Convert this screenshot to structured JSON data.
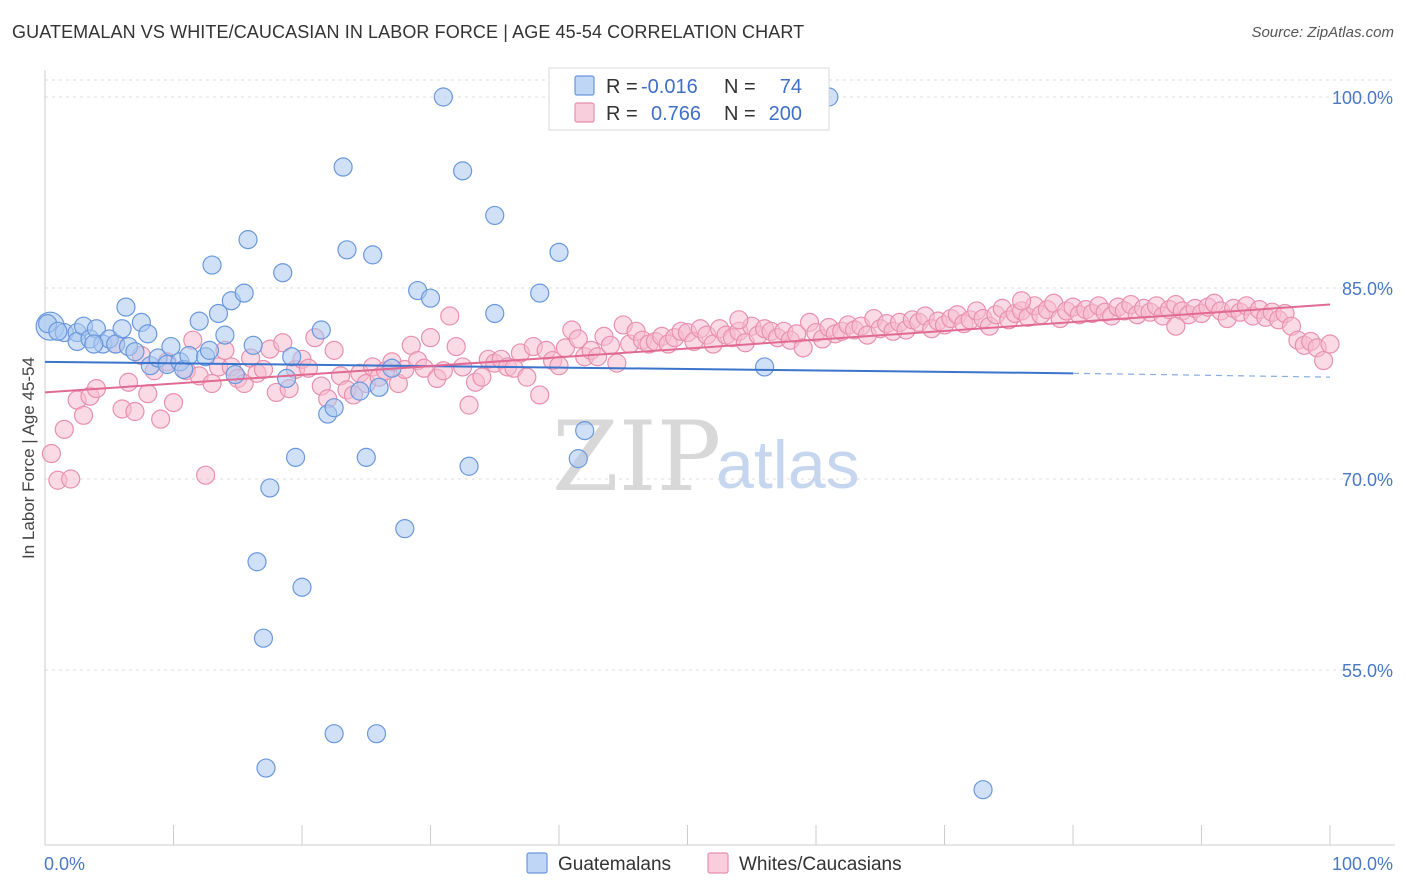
{
  "title": "GUATEMALAN VS WHITE/CAUCASIAN IN LABOR FORCE | AGE 45-54 CORRELATION CHART",
  "source": "Source: ZipAtlas.com",
  "watermark": {
    "zip": "ZIP",
    "atlas": "atlas"
  },
  "chart_data": {
    "type": "scatter",
    "xlabel": "",
    "ylabel": "In Labor Force | Age 45-54",
    "xlim": [
      0,
      100
    ],
    "ylim": [
      40,
      103
    ],
    "x_tick_labels": [
      "0.0%",
      "100.0%"
    ],
    "y_ticks": [
      {
        "value": 55,
        "label": "55.0%"
      },
      {
        "value": 70,
        "label": "70.0%"
      },
      {
        "value": 85,
        "label": "85.0%"
      },
      {
        "value": 100,
        "label": "100.0%"
      }
    ],
    "grid": true,
    "legend_position": "top-center",
    "colors": {
      "guatemalan_fill": "#aac8f0",
      "guatemalan_stroke": "#6a98dc",
      "guatemalan_line": "#3a74cc",
      "white_fill": "#f6bcd0",
      "white_stroke": "#e890ae",
      "white_line": "#e06a94",
      "tick_text": "#4a78c4"
    },
    "stats": [
      {
        "r_label": "R =",
        "r": "-0.016",
        "n_label": "N =",
        "n": "74"
      },
      {
        "r_label": "R =",
        "r": "0.766",
        "n_label": "N =",
        "n": "200"
      }
    ],
    "series": [
      {
        "name": "Guatemalans",
        "trend": {
          "x0": 0,
          "y0": 79.2,
          "x1": 80,
          "y1": 78.3,
          "dash_to": 100,
          "dash_y": 78.0
        },
        "points": [
          [
            0.4,
            82.0
          ],
          [
            1.5,
            81.5
          ],
          [
            2.5,
            81.5
          ],
          [
            2.5,
            80.8
          ],
          [
            3.0,
            82.0
          ],
          [
            3.5,
            81.0
          ],
          [
            4.0,
            81.8
          ],
          [
            4.5,
            80.6
          ],
          [
            5.0,
            81.0
          ],
          [
            5.5,
            80.6
          ],
          [
            6.0,
            81.8
          ],
          [
            6.3,
            83.5
          ],
          [
            6.5,
            80.4
          ],
          [
            7.0,
            80.0
          ],
          [
            7.5,
            82.3
          ],
          [
            8.0,
            81.4
          ],
          [
            8.2,
            78.9
          ],
          [
            8.8,
            79.5
          ],
          [
            9.5,
            79.0
          ],
          [
            9.8,
            80.4
          ],
          [
            10.5,
            79.2
          ],
          [
            10.8,
            78.6
          ],
          [
            11.2,
            79.7
          ],
          [
            12.0,
            82.4
          ],
          [
            12.5,
            79.6
          ],
          [
            12.8,
            80.1
          ],
          [
            13.0,
            86.8
          ],
          [
            13.5,
            83.0
          ],
          [
            14.0,
            81.3
          ],
          [
            14.5,
            84.0
          ],
          [
            14.8,
            78.2
          ],
          [
            15.5,
            84.6
          ],
          [
            15.8,
            88.8
          ],
          [
            16.2,
            80.5
          ],
          [
            16.5,
            63.5
          ],
          [
            17.0,
            57.5
          ],
          [
            17.2,
            47.3
          ],
          [
            17.5,
            69.3
          ],
          [
            18.5,
            86.2
          ],
          [
            18.8,
            77.9
          ],
          [
            19.2,
            79.6
          ],
          [
            19.5,
            71.7
          ],
          [
            20.0,
            61.5
          ],
          [
            21.5,
            81.7
          ],
          [
            22.0,
            75.1
          ],
          [
            22.5,
            75.6
          ],
          [
            23.2,
            94.5
          ],
          [
            23.5,
            88.0
          ],
          [
            22.5,
            50.0
          ],
          [
            24.5,
            76.9
          ],
          [
            25.0,
            71.7
          ],
          [
            25.5,
            87.6
          ],
          [
            25.8,
            50.0
          ],
          [
            26.0,
            77.2
          ],
          [
            27.0,
            78.7
          ],
          [
            28.0,
            66.1
          ],
          [
            29.0,
            84.8
          ],
          [
            30.0,
            84.2
          ],
          [
            31.0,
            100.0
          ],
          [
            32.5,
            94.2
          ],
          [
            33.0,
            71.0
          ],
          [
            35.0,
            90.7
          ],
          [
            35.0,
            83.0
          ],
          [
            38.5,
            84.6
          ],
          [
            40.0,
            87.8
          ],
          [
            41.5,
            71.6
          ],
          [
            42.0,
            73.8
          ],
          [
            52.0,
            100.0
          ],
          [
            56.0,
            78.8
          ],
          [
            61.0,
            100.0
          ],
          [
            73.0,
            45.6
          ],
          [
            0.2,
            82.2
          ],
          [
            1.0,
            81.6
          ],
          [
            3.8,
            80.6
          ]
        ]
      },
      {
        "name": "Whites/Caucasians",
        "trend": {
          "x0": 0,
          "y0": 76.8,
          "x1": 100,
          "y1": 83.7
        },
        "points": [
          [
            0.5,
            72.0
          ],
          [
            1.0,
            69.9
          ],
          [
            1.5,
            73.9
          ],
          [
            2.0,
            70.0
          ],
          [
            2.5,
            76.2
          ],
          [
            3.0,
            75.0
          ],
          [
            3.5,
            76.5
          ],
          [
            4.0,
            77.1
          ],
          [
            5.5,
            80.6
          ],
          [
            6.0,
            75.5
          ],
          [
            6.5,
            77.6
          ],
          [
            7.0,
            75.3
          ],
          [
            7.5,
            79.7
          ],
          [
            8.0,
            76.7
          ],
          [
            8.5,
            78.5
          ],
          [
            9.0,
            74.7
          ],
          [
            9.5,
            79.2
          ],
          [
            10.0,
            76.0
          ],
          [
            11.0,
            78.5
          ],
          [
            11.5,
            80.9
          ],
          [
            12.0,
            78.1
          ],
          [
            12.5,
            70.3
          ],
          [
            13.0,
            77.5
          ],
          [
            13.5,
            78.8
          ],
          [
            14.0,
            80.1
          ],
          [
            14.5,
            78.8
          ],
          [
            15.0,
            77.9
          ],
          [
            15.5,
            77.5
          ],
          [
            16.0,
            79.5
          ],
          [
            16.5,
            78.3
          ],
          [
            17.0,
            78.6
          ],
          [
            17.5,
            80.2
          ],
          [
            18.0,
            76.8
          ],
          [
            18.5,
            80.7
          ],
          [
            19.0,
            77.1
          ],
          [
            19.5,
            78.6
          ],
          [
            20.0,
            79.4
          ],
          [
            20.5,
            78.7
          ],
          [
            21.0,
            81.1
          ],
          [
            21.5,
            77.3
          ],
          [
            22.0,
            76.3
          ],
          [
            22.5,
            80.1
          ],
          [
            23.0,
            78.1
          ],
          [
            23.5,
            77.0
          ],
          [
            24.0,
            76.6
          ],
          [
            24.5,
            78.3
          ],
          [
            25.0,
            77.5
          ],
          [
            25.5,
            78.8
          ],
          [
            26.0,
            78.0
          ],
          [
            26.5,
            78.5
          ],
          [
            27.0,
            79.2
          ],
          [
            27.5,
            77.5
          ],
          [
            28.0,
            78.6
          ],
          [
            28.5,
            80.5
          ],
          [
            29.0,
            79.3
          ],
          [
            29.5,
            78.7
          ],
          [
            30.0,
            81.1
          ],
          [
            30.5,
            77.9
          ],
          [
            31.0,
            78.5
          ],
          [
            31.5,
            82.8
          ],
          [
            32.0,
            80.4
          ],
          [
            32.5,
            78.8
          ],
          [
            33.0,
            75.8
          ],
          [
            33.5,
            77.6
          ],
          [
            34.0,
            78.0
          ],
          [
            34.5,
            79.4
          ],
          [
            35.0,
            79.1
          ],
          [
            35.5,
            79.4
          ],
          [
            36.0,
            78.8
          ],
          [
            36.5,
            78.7
          ],
          [
            37.0,
            79.9
          ],
          [
            37.5,
            78.0
          ],
          [
            38.0,
            80.4
          ],
          [
            38.5,
            76.6
          ],
          [
            39.0,
            80.1
          ],
          [
            39.5,
            79.3
          ],
          [
            40.0,
            78.9
          ],
          [
            40.5,
            80.3
          ],
          [
            41.0,
            81.7
          ],
          [
            41.5,
            81.0
          ],
          [
            42.0,
            79.6
          ],
          [
            42.5,
            80.1
          ],
          [
            43.0,
            79.6
          ],
          [
            43.5,
            81.2
          ],
          [
            44.0,
            80.5
          ],
          [
            44.5,
            79.1
          ],
          [
            45.0,
            82.1
          ],
          [
            45.5,
            80.6
          ],
          [
            46.0,
            81.6
          ],
          [
            46.5,
            80.9
          ],
          [
            47.0,
            80.6
          ],
          [
            47.5,
            80.8
          ],
          [
            48.0,
            81.2
          ],
          [
            48.5,
            80.6
          ],
          [
            49.0,
            81.1
          ],
          [
            49.5,
            81.6
          ],
          [
            50.0,
            81.5
          ],
          [
            50.5,
            80.8
          ],
          [
            51.0,
            81.8
          ],
          [
            51.5,
            81.3
          ],
          [
            52.0,
            80.6
          ],
          [
            52.5,
            81.8
          ],
          [
            53.0,
            81.3
          ],
          [
            53.5,
            81.1
          ],
          [
            54.0,
            81.6
          ],
          [
            54.5,
            80.7
          ],
          [
            55.0,
            82.0
          ],
          [
            55.5,
            81.3
          ],
          [
            56.0,
            81.8
          ],
          [
            56.5,
            81.6
          ],
          [
            57.0,
            81.1
          ],
          [
            57.5,
            81.6
          ],
          [
            58.0,
            80.9
          ],
          [
            58.5,
            81.4
          ],
          [
            59.0,
            80.3
          ],
          [
            59.5,
            82.3
          ],
          [
            60.0,
            81.5
          ],
          [
            60.5,
            81.0
          ],
          [
            61.0,
            81.9
          ],
          [
            61.5,
            81.4
          ],
          [
            62.0,
            81.6
          ],
          [
            62.5,
            82.1
          ],
          [
            63.0,
            81.7
          ],
          [
            63.5,
            82.0
          ],
          [
            64.0,
            81.3
          ],
          [
            64.5,
            82.6
          ],
          [
            65.0,
            81.8
          ],
          [
            65.5,
            82.2
          ],
          [
            66.0,
            81.6
          ],
          [
            66.5,
            82.3
          ],
          [
            67.0,
            81.7
          ],
          [
            67.5,
            82.5
          ],
          [
            68.0,
            82.3
          ],
          [
            68.5,
            82.8
          ],
          [
            69.0,
            81.8
          ],
          [
            69.5,
            82.4
          ],
          [
            70.0,
            82.1
          ],
          [
            70.5,
            82.6
          ],
          [
            71.0,
            82.9
          ],
          [
            71.5,
            82.2
          ],
          [
            72.0,
            82.5
          ],
          [
            72.5,
            83.2
          ],
          [
            73.0,
            82.6
          ],
          [
            73.5,
            82.0
          ],
          [
            74.0,
            82.9
          ],
          [
            74.5,
            83.4
          ],
          [
            75.0,
            82.5
          ],
          [
            75.5,
            83.0
          ],
          [
            76.0,
            83.2
          ],
          [
            76.5,
            82.7
          ],
          [
            77.0,
            83.6
          ],
          [
            77.5,
            82.9
          ],
          [
            78.0,
            83.3
          ],
          [
            78.5,
            83.8
          ],
          [
            79.0,
            82.6
          ],
          [
            79.5,
            83.2
          ],
          [
            80.0,
            83.5
          ],
          [
            80.5,
            82.9
          ],
          [
            81.0,
            83.3
          ],
          [
            81.5,
            83.0
          ],
          [
            82.0,
            83.6
          ],
          [
            82.5,
            83.1
          ],
          [
            83.0,
            82.8
          ],
          [
            83.5,
            83.5
          ],
          [
            84.0,
            83.2
          ],
          [
            84.5,
            83.7
          ],
          [
            85.0,
            82.9
          ],
          [
            85.5,
            83.4
          ],
          [
            86.0,
            83.1
          ],
          [
            86.5,
            83.6
          ],
          [
            87.0,
            82.8
          ],
          [
            87.5,
            83.3
          ],
          [
            88.0,
            83.7
          ],
          [
            88.5,
            83.2
          ],
          [
            89.0,
            82.9
          ],
          [
            89.5,
            83.4
          ],
          [
            90.0,
            83.0
          ],
          [
            90.5,
            83.5
          ],
          [
            91.0,
            83.8
          ],
          [
            91.5,
            83.2
          ],
          [
            92.0,
            82.6
          ],
          [
            92.5,
            83.4
          ],
          [
            93.0,
            83.1
          ],
          [
            93.5,
            83.6
          ],
          [
            94.0,
            82.8
          ],
          [
            94.5,
            83.3
          ],
          [
            95.0,
            82.7
          ],
          [
            95.5,
            83.1
          ],
          [
            96.0,
            82.5
          ],
          [
            96.5,
            83.0
          ],
          [
            97.0,
            82.0
          ],
          [
            97.5,
            80.9
          ],
          [
            98.0,
            80.5
          ],
          [
            98.5,
            80.8
          ],
          [
            99.0,
            80.3
          ],
          [
            99.5,
            79.3
          ],
          [
            100.0,
            80.6
          ],
          [
            88.0,
            82.0
          ],
          [
            76.0,
            84.0
          ],
          [
            54.0,
            82.5
          ]
        ]
      }
    ]
  }
}
